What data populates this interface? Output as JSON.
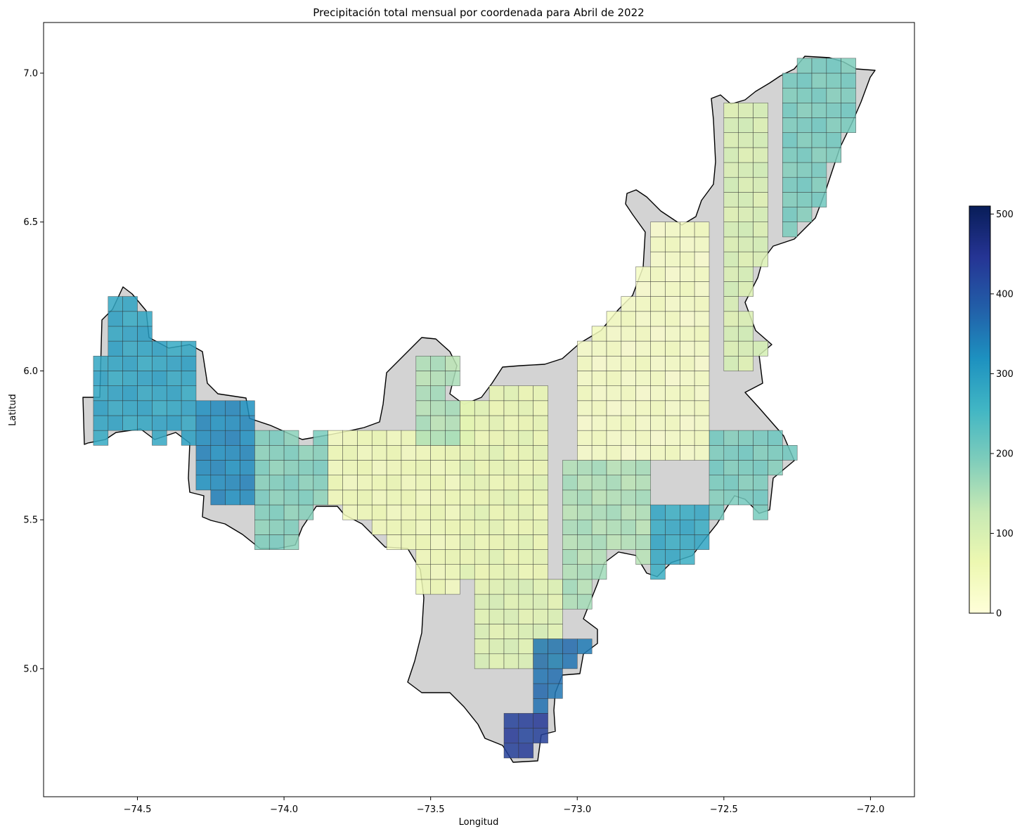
{
  "title": "Precipitación total mensual por coordenada para Abril de 2022",
  "xlabel": "Longitud",
  "ylabel": "Latitud",
  "x_ticks": [
    "−74.5",
    "−74.0",
    "−73.5",
    "−73.0",
    "−72.5",
    "−72.0"
  ],
  "y_ticks": [
    "7.0",
    "6.5",
    "6.0",
    "5.5",
    "5.0"
  ],
  "colorbar_ticks": [
    "0",
    "100",
    "200",
    "300",
    "400",
    "500"
  ],
  "colors": {
    "land": "#d3d3d3",
    "outline": "#000000",
    "cell_edge": "#333333",
    "colormap": "YlGnBu",
    "colormap_stops": [
      "#ffffd9",
      "#edf8b1",
      "#c7e9b4",
      "#7fcdbb",
      "#41b6c4",
      "#1d91c0",
      "#225ea8",
      "#253494",
      "#081d58"
    ]
  },
  "chart_data": {
    "type": "heatmap",
    "title": "Precipitación total mensual por coordenada para Abril de 2022",
    "xlabel": "Longitud",
    "ylabel": "Latitud",
    "xlim": [
      -74.82,
      -71.85
    ],
    "ylim": [
      4.57,
      7.17
    ],
    "x_ticks": [
      -74.5,
      -74.0,
      -73.5,
      -73.0,
      -72.5,
      -72.0
    ],
    "y_ticks": [
      5.0,
      5.5,
      6.0,
      6.5,
      7.0
    ],
    "cell_size_deg": 0.05,
    "colorbar": {
      "min": 0,
      "max": 510,
      "ticks": [
        0,
        100,
        200,
        300,
        400,
        500
      ]
    },
    "regions": [
      {
        "lon": [
          -74.65,
          -74.3
        ],
        "lat": [
          5.75,
          6.25
        ],
        "value": 290
      },
      {
        "lon": [
          -74.3,
          -74.1
        ],
        "lat": [
          5.55,
          5.9
        ],
        "value": 330
      },
      {
        "lon": [
          -74.1,
          -73.85
        ],
        "lat": [
          5.35,
          5.8
        ],
        "value": 190
      },
      {
        "lon": [
          -73.85,
          -73.4
        ],
        "lat": [
          5.25,
          5.8
        ],
        "value": 55
      },
      {
        "lon": [
          -73.55,
          -73.35
        ],
        "lat": [
          5.75,
          6.05
        ],
        "value": 150
      },
      {
        "lon": [
          -73.4,
          -73.1
        ],
        "lat": [
          5.3,
          5.95
        ],
        "value": 70
      },
      {
        "lon": [
          -73.05,
          -72.75
        ],
        "lat": [
          5.2,
          5.7
        ],
        "value": 150
      },
      {
        "lon": [
          -72.75,
          -72.55
        ],
        "lat": [
          5.3,
          5.55
        ],
        "value": 280
      },
      {
        "lon": [
          -72.55,
          -72.25
        ],
        "lat": [
          5.5,
          5.8
        ],
        "value": 200
      },
      {
        "lon": [
          -73.0,
          -72.55
        ],
        "lat": [
          5.7,
          6.5
        ],
        "value": 35
      },
      {
        "lon": [
          -72.5,
          -72.35
        ],
        "lat": [
          6.0,
          6.9
        ],
        "value": 100
      },
      {
        "lon": [
          -72.3,
          -72.05
        ],
        "lat": [
          6.45,
          7.05
        ],
        "value": 200
      },
      {
        "lon": [
          -73.35,
          -73.05
        ],
        "lat": [
          5.0,
          5.3
        ],
        "value": 90
      },
      {
        "lon": [
          -73.15,
          -72.95
        ],
        "lat": [
          4.85,
          5.1
        ],
        "value": 360
      },
      {
        "lon": [
          -73.25,
          -73.05
        ],
        "lat": [
          4.65,
          4.85
        ],
        "value": 430
      }
    ]
  }
}
